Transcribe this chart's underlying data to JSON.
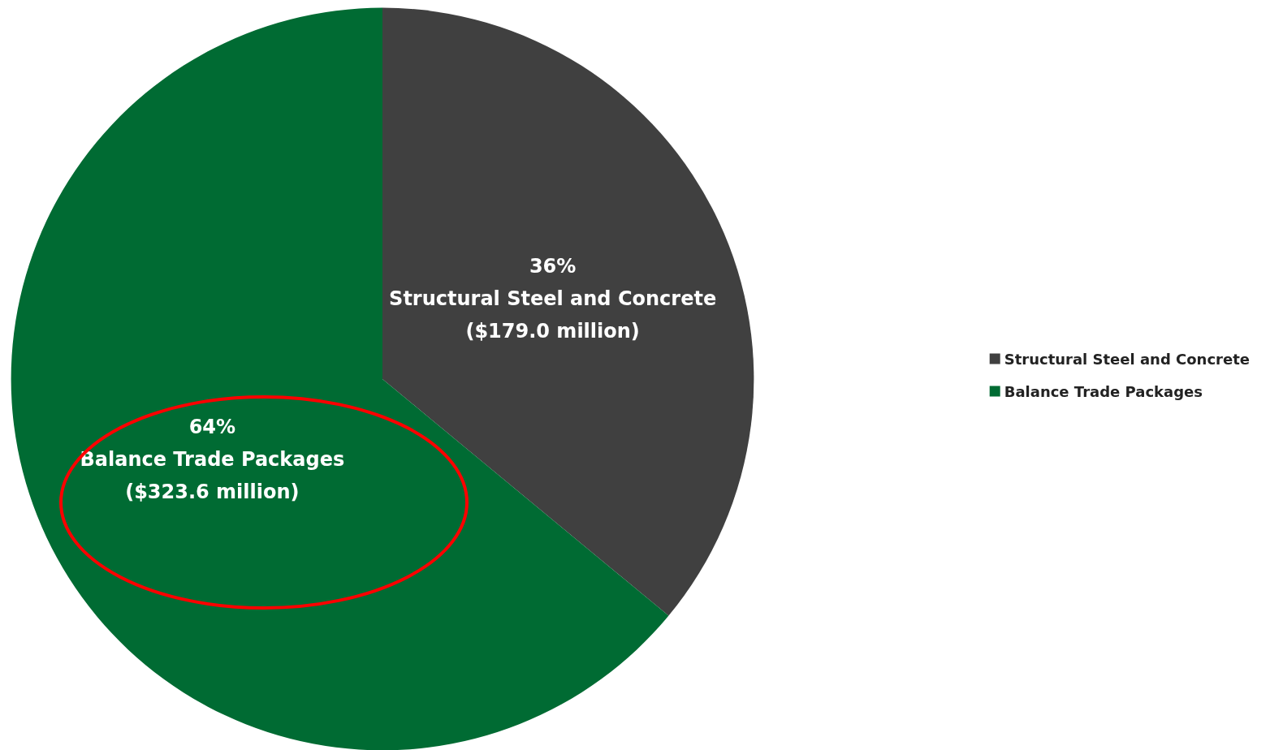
{
  "chart_data": {
    "type": "pie",
    "categories": [
      "Structural Steel and Concrete",
      "Balance Trade Packages"
    ],
    "values": [
      36,
      64
    ],
    "colors": [
      "#404040",
      "#006b33"
    ],
    "value_labels": [
      "36%\nStructural Steel and Concrete\n($179.0 million)",
      "64%\nBalance Trade Packages\n($323.6 million)"
    ],
    "legend": "right"
  }
}
